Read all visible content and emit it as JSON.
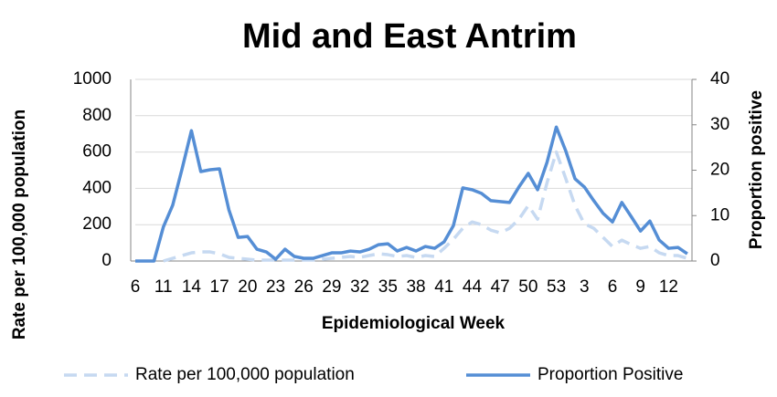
{
  "chart_data": {
    "type": "line",
    "title": "Mid and East Antrim",
    "x_label": "Epidemiological Week",
    "y_label": "Rate per 100,000 population",
    "y2_label": "Proportion positive",
    "categories": [
      "6",
      null,
      null,
      "11",
      null,
      null,
      "14",
      null,
      null,
      "17",
      null,
      null,
      "20",
      null,
      null,
      "23",
      null,
      null,
      "26",
      null,
      null,
      "29",
      null,
      null,
      "32",
      null,
      null,
      "35",
      null,
      null,
      "38",
      null,
      null,
      "41",
      null,
      null,
      "44",
      null,
      null,
      "47",
      null,
      null,
      "50",
      null,
      null,
      "53",
      null,
      null,
      "3",
      null,
      null,
      "6",
      null,
      null,
      "9",
      null,
      null,
      "12",
      null,
      null
    ],
    "series": [
      {
        "name": "Rate per 100,000 population",
        "color": "#c6d9f1",
        "dash": true,
        "values": [
          null,
          null,
          null,
          0,
          15,
          30,
          45,
          50,
          50,
          40,
          20,
          15,
          10,
          5,
          5,
          5,
          5,
          5,
          5,
          5,
          10,
          15,
          20,
          25,
          20,
          30,
          40,
          35,
          25,
          30,
          20,
          30,
          25,
          70,
          120,
          180,
          215,
          200,
          170,
          155,
          180,
          230,
          305,
          230,
          430,
          600,
          455,
          305,
          205,
          180,
          130,
          80,
          115,
          90,
          70,
          80,
          45,
          30,
          30,
          15
        ]
      },
      {
        "name": "Proportion Positive",
        "color": "#558ed5",
        "dash": false,
        "axis": "y2",
        "values": [
          0,
          0,
          0,
          7.5,
          12.3,
          20.3,
          28.7,
          19.7,
          20.1,
          20.3,
          11.3,
          5.2,
          5.4,
          2.6,
          2,
          0.4,
          2.6,
          1,
          0.6,
          0.6,
          1.2,
          1.8,
          1.8,
          2.2,
          2,
          2.6,
          3.6,
          3.8,
          2.2,
          3,
          2.2,
          3.2,
          2.8,
          4.2,
          7.8,
          16.1,
          15.7,
          14.9,
          13.3,
          13.1,
          12.9,
          16.3,
          19.3,
          15.7,
          21.7,
          29.5,
          24.3,
          18.1,
          16.3,
          13.3,
          10.5,
          8.6,
          12.9,
          9.8,
          6.6,
          8.8,
          4.6,
          2.8,
          3,
          1.6
        ]
      }
    ],
    "ylim": [
      0,
      1000
    ],
    "yticks": [
      0,
      200,
      400,
      600,
      800,
      1000
    ],
    "y2lim": [
      0,
      40
    ],
    "y2ticks": [
      0,
      10,
      20,
      30,
      40
    ],
    "grid": true,
    "legend": "bottom"
  }
}
